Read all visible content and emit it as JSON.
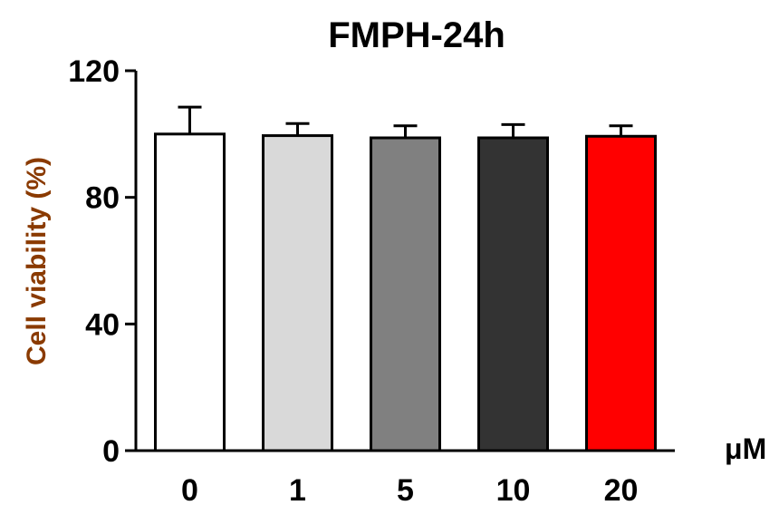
{
  "chart_data": {
    "type": "bar",
    "title": "FMPH-24h",
    "ylabel": "Cell viability (%)",
    "xunit": "μM",
    "categories": [
      "0",
      "1",
      "5",
      "10",
      "20"
    ],
    "values": [
      100,
      99.5,
      98.8,
      98.8,
      99.3
    ],
    "errors": [
      8.5,
      3.8,
      3.8,
      4.2,
      3.3
    ],
    "bar_colors": [
      "#ffffff",
      "#d9d9d9",
      "#808080",
      "#333333",
      "#ff0000"
    ],
    "ylim": [
      0,
      120
    ],
    "yticks": [
      0,
      40,
      80,
      120
    ],
    "ytick_labels": [
      "0",
      "40",
      "80",
      "120"
    ],
    "grid": false,
    "legend": "none"
  }
}
